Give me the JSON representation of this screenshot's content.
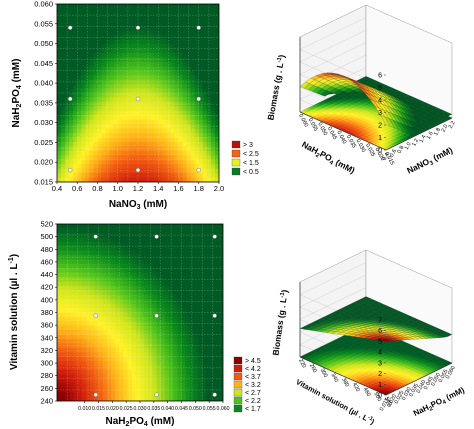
{
  "chart_data": [
    {
      "panel": "top-left",
      "type": "heatmap",
      "xlabel": "NaNO",
      "xlabel_sub": "3",
      "xlabel_unit": " (mM)",
      "ylabel": "NaH",
      "ylabel_sub1": "2",
      "ylabel_mid": "PO",
      "ylabel_sub2": "4",
      "ylabel_unit": " (mM)",
      "xlim": [
        0.4,
        2.0
      ],
      "ylim": [
        0.015,
        0.06
      ],
      "xticks": [
        "0.4",
        "0.6",
        "0.8",
        "1.0",
        "1.2",
        "1.4",
        "1.6",
        "1.8",
        "2.0"
      ],
      "yticks": [
        "0.015",
        "0.020",
        "0.025",
        "0.030",
        "0.035",
        "0.040",
        "0.045",
        "0.050",
        "0.055",
        "0.060"
      ],
      "legend": [
        "> 3",
        "< 2.5",
        "< 1.5",
        "< 0.5"
      ],
      "legend_placement": "bottom-right",
      "design_points": [
        {
          "x": 0.53,
          "y": 0.054
        },
        {
          "x": 1.2,
          "y": 0.054
        },
        {
          "x": 1.8,
          "y": 0.054
        },
        {
          "x": 0.53,
          "y": 0.036
        },
        {
          "x": 1.2,
          "y": 0.036
        },
        {
          "x": 1.8,
          "y": 0.036
        },
        {
          "x": 0.53,
          "y": 0.018
        },
        {
          "x": 1.2,
          "y": 0.018
        },
        {
          "x": 1.8,
          "y": 0.018
        }
      ],
      "grid": true
    },
    {
      "panel": "bottom-left",
      "type": "heatmap",
      "xlabel": "NaH",
      "xlabel_sub1": "2",
      "xlabel_mid": "PO",
      "xlabel_sub2": "4",
      "xlabel_unit": " (mM)",
      "ylabel": "Vitamin solution (µl . L",
      "ylabel_sup": "-1",
      "ylabel_end": ")",
      "xlim": [
        0.0,
        0.06
      ],
      "ylim": [
        240,
        520
      ],
      "xticks": [
        "0.010",
        "0.015",
        "0.020",
        "0.025",
        "0.030",
        "0.035",
        "0.040",
        "0.045",
        "0.050",
        "0.055",
        "0.060"
      ],
      "yticks": [
        "240",
        "260",
        "280",
        "300",
        "320",
        "340",
        "360",
        "380",
        "400",
        "420",
        "440",
        "460",
        "480",
        "500",
        "520"
      ],
      "legend": [
        "> 4.5",
        "< 4.2",
        "< 3.7",
        "< 3.2",
        "< 2.7",
        "< 2.2",
        "< 1.7"
      ],
      "legend_placement": "bottom-right",
      "design_points": [
        {
          "x": 0.014,
          "y": 500
        },
        {
          "x": 0.036,
          "y": 500
        },
        {
          "x": 0.057,
          "y": 500
        },
        {
          "x": 0.014,
          "y": 375
        },
        {
          "x": 0.036,
          "y": 375
        },
        {
          "x": 0.057,
          "y": 375
        },
        {
          "x": 0.014,
          "y": 250
        },
        {
          "x": 0.036,
          "y": 250
        },
        {
          "x": 0.057,
          "y": 250
        }
      ],
      "grid": true
    },
    {
      "panel": "top-right",
      "type": "surface",
      "zlabel": "Biomass (g . L",
      "zlabel_sup": "-1",
      "zlabel_end": ")",
      "xlabel": "NaNO",
      "xlabel_sub": "3",
      "xlabel_unit": " (mM)",
      "ylabel": "NaH",
      "ylabel_sub1": "2",
      "ylabel_mid": "PO",
      "ylabel_sub2": "4",
      "ylabel_unit": " (mM)",
      "zticks": [
        "0",
        "1",
        "2",
        "3",
        "4",
        "5",
        "6"
      ],
      "xticks": [
        "0.4",
        "0.6",
        "0.8",
        "1.0",
        "1.2",
        "1.4",
        "1.6",
        "1.8",
        "2.0",
        "2.2"
      ],
      "yticks": [
        "0.060",
        "0.055",
        "0.050",
        "0.045",
        "0.040",
        "0.035",
        "0.030",
        "0.025",
        "0.020",
        "0.015"
      ]
    },
    {
      "panel": "bottom-right",
      "type": "surface",
      "zlabel": "Biomass (g . L",
      "zlabel_sup": "-1",
      "zlabel_end": ")",
      "xlabel": "NaH",
      "xlabel_sub1": "2",
      "xlabel_mid": "PO",
      "xlabel_sub2": "4",
      "xlabel_unit": " (mM)",
      "ylabel": "Vitamin solution (µl . L",
      "ylabel_sup": "-1",
      "ylabel_end": ")",
      "zticks": [
        "0",
        "1",
        "2",
        "3",
        "4",
        "5",
        "6",
        "7"
      ],
      "xticks": [
        "0.015",
        "0.020",
        "0.025",
        "0.030",
        "0.035",
        "0.040",
        "0.045",
        "0.050",
        "0.055",
        "0.060"
      ],
      "yticks": [
        "220",
        "260",
        "300",
        "340",
        "380",
        "420",
        "460",
        "500",
        "540"
      ]
    }
  ],
  "colors": {
    "ramp": [
      "#005a24",
      "#0a8a1c",
      "#4ec31c",
      "#cfe51e",
      "#fff22a",
      "#ffb31a",
      "#f25c12",
      "#cf1d0e",
      "#8c0000"
    ],
    "point": "#ffffff"
  }
}
